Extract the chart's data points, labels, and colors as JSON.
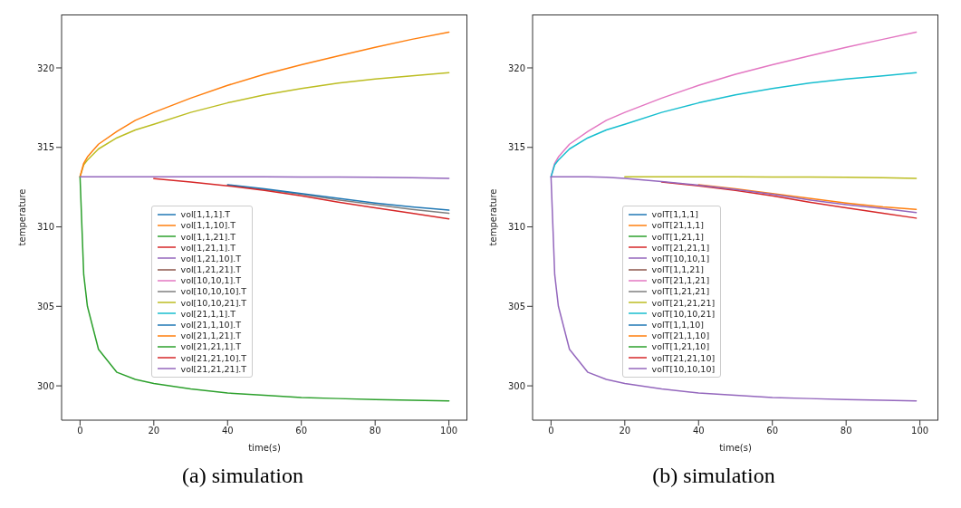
{
  "chart_data": [
    {
      "type": "line",
      "xlabel": "time(s)",
      "ylabel": "temperature",
      "annotations": [
        "(a) simulation"
      ],
      "legend": "bottom left",
      "grid": false,
      "x": [
        0,
        1,
        2,
        5,
        10,
        15,
        20,
        30,
        40,
        50,
        60,
        70,
        80,
        90,
        100
      ],
      "xlim": [
        -5,
        105
      ],
      "xticks": [
        0,
        20,
        40,
        60,
        80,
        100
      ],
      "ylim": [
        297.84,
        323.36
      ],
      "yticks": [
        300,
        305,
        310,
        315,
        320
      ],
      "series": [
        {
          "name": "vol[1,1,1].T",
          "color": "#1f77b4",
          "values": [
            null,
            null,
            null,
            null,
            null,
            null,
            null,
            null,
            null,
            null,
            null,
            null,
            null,
            null,
            null
          ]
        },
        {
          "name": "vol[1,1,10].T",
          "color": "#ff7f0e",
          "values": [
            null,
            null,
            null,
            null,
            null,
            null,
            null,
            null,
            null,
            null,
            null,
            null,
            null,
            null,
            null
          ]
        },
        {
          "name": "vol[1,1,21].T",
          "color": "#2ca02c",
          "values": [
            null,
            null,
            null,
            null,
            null,
            null,
            null,
            null,
            null,
            null,
            null,
            null,
            null,
            null,
            null
          ]
        },
        {
          "name": "vol[1,21,1].T",
          "color": "#d62728",
          "values": [
            null,
            null,
            null,
            null,
            null,
            null,
            null,
            null,
            null,
            null,
            null,
            null,
            null,
            null,
            null
          ]
        },
        {
          "name": "vol[1,21,10].T",
          "color": "#9467bd",
          "values": [
            null,
            null,
            null,
            null,
            null,
            null,
            null,
            null,
            null,
            null,
            null,
            null,
            null,
            null,
            null
          ]
        },
        {
          "name": "vol[1,21,21].T",
          "color": "#8c564b",
          "values": [
            null,
            null,
            null,
            null,
            null,
            null,
            null,
            null,
            null,
            null,
            null,
            null,
            null,
            null,
            null
          ]
        },
        {
          "name": "vol[10,10,1].T",
          "color": "#e377c2",
          "values": [
            null,
            null,
            null,
            null,
            null,
            null,
            null,
            null,
            null,
            null,
            null,
            null,
            null,
            null,
            null
          ]
        },
        {
          "name": "vol[10,10,10].T",
          "color": "#7f7f7f",
          "values": [
            null,
            null,
            null,
            null,
            null,
            null,
            null,
            null,
            312.62,
            312.35,
            312.05,
            311.7,
            311.4,
            311.1,
            310.85
          ]
        },
        {
          "name": "vol[10,10,21].T",
          "color": "#bcbd22",
          "values": [
            313.15,
            313.9,
            314.2,
            314.9,
            315.6,
            316.1,
            316.45,
            317.2,
            317.8,
            318.3,
            318.7,
            319.05,
            319.3,
            319.5,
            319.7
          ]
        },
        {
          "name": "vol[21,1,1].T",
          "color": "#17becf",
          "values": [
            null,
            null,
            null,
            null,
            null,
            null,
            null,
            null,
            null,
            null,
            null,
            null,
            null,
            null,
            null
          ]
        },
        {
          "name": "vol[21,1,10].T",
          "color": "#1f77b4",
          "values": [
            null,
            null,
            null,
            null,
            null,
            null,
            null,
            null,
            312.65,
            312.4,
            312.1,
            311.8,
            311.5,
            311.25,
            311.05
          ]
        },
        {
          "name": "vol[21,1,21].T",
          "color": "#ff7f0e",
          "values": [
            313.15,
            314.0,
            314.4,
            315.2,
            316.0,
            316.7,
            317.2,
            318.1,
            318.9,
            319.6,
            320.2,
            320.75,
            321.3,
            321.8,
            322.25
          ]
        },
        {
          "name": "vol[21,21,1].T",
          "color": "#2ca02c",
          "values": [
            313.15,
            307.0,
            305.0,
            302.3,
            300.85,
            300.4,
            300.15,
            299.8,
            299.55,
            299.4,
            299.27,
            299.2,
            299.14,
            299.09,
            299.05
          ]
        },
        {
          "name": "vol[21,21,10].T",
          "color": "#d62728",
          "values": [
            null,
            null,
            null,
            null,
            null,
            null,
            313.04,
            312.82,
            312.58,
            312.3,
            311.95,
            311.55,
            311.2,
            310.85,
            310.5
          ]
        },
        {
          "name": "vol[21,21,21].T",
          "color": "#9467bd",
          "values": [
            313.15,
            313.15,
            313.15,
            313.15,
            313.15,
            313.15,
            313.15,
            313.15,
            313.15,
            313.15,
            313.14,
            313.13,
            313.12,
            313.09,
            313.05
          ]
        }
      ]
    },
    {
      "type": "line",
      "xlabel": "time(s)",
      "ylabel": "temperature",
      "annotations": [
        "(b) simulation"
      ],
      "legend": "bottom left",
      "grid": false,
      "x": [
        0,
        1,
        2,
        5,
        10,
        15,
        20,
        30,
        40,
        50,
        60,
        70,
        80,
        90,
        99
      ],
      "xlim": [
        -5,
        105
      ],
      "xticks": [
        0,
        20,
        40,
        60,
        80,
        100
      ],
      "ylim": [
        297.84,
        323.36
      ],
      "yticks": [
        300,
        305,
        310,
        315,
        320
      ],
      "series": [
        {
          "name": "volT[1,1,1]",
          "color": "#1f77b4",
          "values": [
            null,
            null,
            null,
            null,
            null,
            null,
            null,
            null,
            null,
            null,
            null,
            null,
            null,
            null,
            null
          ]
        },
        {
          "name": "volT[21,1,1]",
          "color": "#ff7f0e",
          "values": [
            null,
            null,
            null,
            null,
            null,
            null,
            null,
            null,
            null,
            null,
            null,
            null,
            null,
            null,
            null
          ]
        },
        {
          "name": "volT[1,21,1]",
          "color": "#2ca02c",
          "values": [
            null,
            null,
            null,
            null,
            null,
            null,
            null,
            null,
            null,
            null,
            null,
            null,
            null,
            null,
            null
          ]
        },
        {
          "name": "volT[21,21,1]",
          "color": "#d62728",
          "values": [
            null,
            null,
            null,
            null,
            null,
            null,
            null,
            null,
            null,
            null,
            null,
            null,
            null,
            null,
            null
          ]
        },
        {
          "name": "volT[10,10,1]",
          "color": "#9467bd",
          "values": [
            313.15,
            307.0,
            305.0,
            302.3,
            300.85,
            300.4,
            300.15,
            299.8,
            299.55,
            299.4,
            299.27,
            299.2,
            299.14,
            299.09,
            299.05
          ]
        },
        {
          "name": "volT[1,1,21]",
          "color": "#8c564b",
          "values": [
            null,
            null,
            null,
            null,
            null,
            null,
            null,
            null,
            null,
            null,
            null,
            null,
            null,
            null,
            null
          ]
        },
        {
          "name": "volT[21,1,21]",
          "color": "#e377c2",
          "values": [
            313.15,
            314.0,
            314.4,
            315.2,
            316.0,
            316.7,
            317.2,
            318.1,
            318.9,
            319.6,
            320.2,
            320.75,
            321.3,
            321.8,
            322.25
          ]
        },
        {
          "name": "volT[1,21,21]",
          "color": "#7f7f7f",
          "values": [
            null,
            null,
            null,
            null,
            null,
            null,
            null,
            null,
            null,
            null,
            null,
            null,
            null,
            null,
            null
          ]
        },
        {
          "name": "volT[21,21,21]",
          "color": "#bcbd22",
          "values": [
            null,
            null,
            null,
            null,
            null,
            null,
            313.15,
            313.15,
            313.15,
            313.15,
            313.14,
            313.13,
            313.12,
            313.09,
            313.05
          ]
        },
        {
          "name": "volT[10,10,21]",
          "color": "#17becf",
          "values": [
            313.15,
            313.9,
            314.2,
            314.9,
            315.6,
            316.1,
            316.45,
            317.2,
            317.8,
            318.3,
            318.7,
            319.05,
            319.3,
            319.5,
            319.7
          ]
        },
        {
          "name": "volT[1,1,10]",
          "color": "#1f77b4",
          "values": [
            null,
            null,
            null,
            null,
            null,
            null,
            null,
            null,
            null,
            null,
            null,
            null,
            null,
            null,
            null
          ]
        },
        {
          "name": "volT[21,1,10]",
          "color": "#ff7f0e",
          "values": [
            null,
            null,
            null,
            null,
            null,
            null,
            null,
            null,
            312.65,
            312.4,
            312.1,
            311.8,
            311.5,
            311.25,
            311.1
          ]
        },
        {
          "name": "volT[1,21,10]",
          "color": "#2ca02c",
          "values": [
            null,
            null,
            null,
            null,
            null,
            null,
            null,
            null,
            null,
            null,
            null,
            null,
            null,
            null,
            null
          ]
        },
        {
          "name": "volT[21,21,10]",
          "color": "#d62728",
          "values": [
            null,
            null,
            null,
            null,
            null,
            null,
            null,
            312.82,
            312.58,
            312.3,
            311.95,
            311.55,
            311.2,
            310.85,
            310.55
          ]
        },
        {
          "name": "volT[10,10,10]",
          "color": "#9467bd",
          "values": [
            313.15,
            313.15,
            313.15,
            313.15,
            313.15,
            313.12,
            313.05,
            312.85,
            312.62,
            312.35,
            312.05,
            311.7,
            311.4,
            311.15,
            310.9
          ]
        }
      ]
    }
  ]
}
